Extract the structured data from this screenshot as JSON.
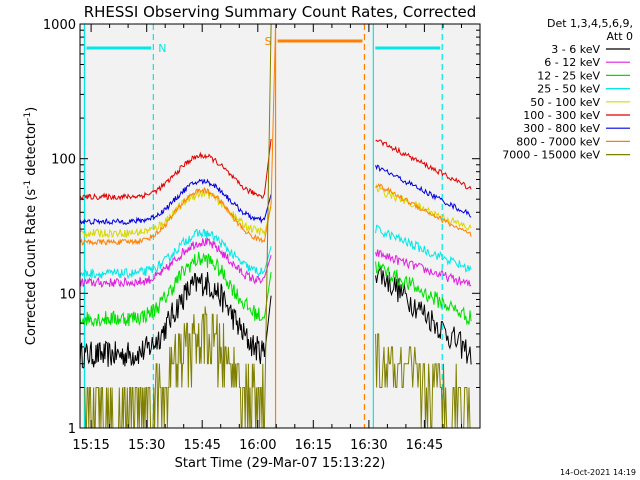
{
  "chart_data": {
    "type": "line",
    "title": "RHESSI Observing Summary Count Rates, Corrected",
    "xlabel": "Start Time (29-Mar-07 15:13:22)",
    "ylabel": "Corrected Count Rate (s",
    "ylabel_sup1": "-1",
    "ylabel_mid": " detector",
    "ylabel_sup2": "-1",
    "ylabel_end": ")",
    "yscale": "log",
    "ylim": [
      1,
      1000
    ],
    "xlim_minutes": [
      15.2,
      17.0
    ],
    "x_ticks": [
      "15:15",
      "15:30",
      "15:45",
      "16:00",
      "16:15",
      "16:30",
      "16:45"
    ],
    "y_ticks": [
      "1",
      "10",
      "100",
      "1000"
    ],
    "footer": "14-Oct-2021 14:19",
    "legend": {
      "header_line1": "Det 1,3,4,5,6,9,",
      "header_line2": "Att 0",
      "position": "right"
    },
    "series": [
      {
        "name": "3 - 6 keV",
        "color": "#000000",
        "base": 3.5,
        "peak": 12,
        "post_start": 15,
        "post_end": 3.5,
        "noise": 0.1
      },
      {
        "name": "6 - 12 keV",
        "color": "#e020e0",
        "base": 12,
        "peak": 24,
        "post_start": 20,
        "post_end": 11.5,
        "noise": 0.035
      },
      {
        "name": "12 - 25 keV",
        "color": "#00e000",
        "base": 6.5,
        "peak": 18,
        "post_start": 16,
        "post_end": 6.5,
        "noise": 0.06
      },
      {
        "name": "25 - 50 keV",
        "color": "#00e8e8",
        "base": 14,
        "peak": 28,
        "post_start": 30,
        "post_end": 15,
        "noise": 0.035
      },
      {
        "name": "50 - 100 keV",
        "color": "#d8d800",
        "base": 28,
        "peak": 55,
        "post_start": 60,
        "post_end": 30,
        "noise": 0.03
      },
      {
        "name": "100 - 300 keV",
        "color": "#e00000",
        "base": 52,
        "peak": 105,
        "post_start": 140,
        "post_end": 60,
        "noise": 0.02
      },
      {
        "name": "300 - 800 keV",
        "color": "#0000e0",
        "base": 34,
        "peak": 68,
        "post_start": 88,
        "post_end": 38,
        "noise": 0.02
      },
      {
        "name": "800 - 7000 keV",
        "color": "#ff8000",
        "base": 24,
        "peak": 58,
        "post_start": 65,
        "post_end": 27,
        "noise": 0.02
      },
      {
        "name": "7000 - 15000 keV",
        "color": "#808000",
        "base": 1.4,
        "peak": 4.5,
        "post_start": 3,
        "post_end": 1.5,
        "noise": 0.25
      }
    ],
    "annotations": [
      {
        "label": "N",
        "color": "#00e8e8",
        "start_min": 15.22,
        "end_min": 15.53
      },
      {
        "label": "S",
        "color": "#ff8000",
        "start_min": 16.08,
        "end_min": 16.48
      },
      {
        "label": "",
        "color": "#00e8e8",
        "start_min": 16.52,
        "end_min": 16.83
      }
    ],
    "gap": {
      "start_min": 16.08,
      "end_min": 16.52
    }
  }
}
